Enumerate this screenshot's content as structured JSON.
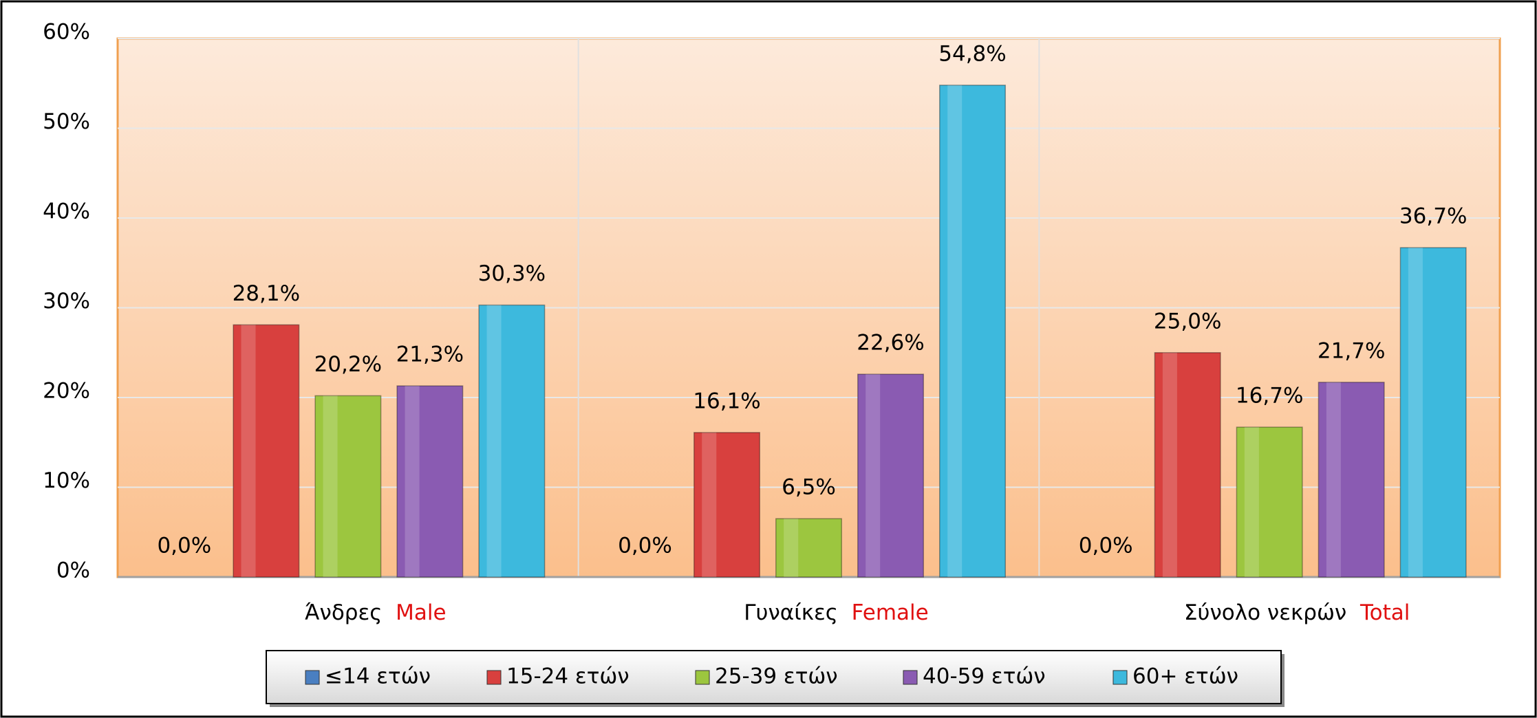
{
  "chart_data": {
    "type": "bar",
    "categories": [
      "Άνδρες",
      "Γυναίκες",
      "Σύνολο νεκρών"
    ],
    "category_translations": [
      "Male",
      "Female",
      "Total"
    ],
    "series": [
      {
        "name": "≤14 ετών",
        "color": "#4a7fc1",
        "values": [
          0,
          0,
          0
        ],
        "value_labels": [
          "0,0%",
          "0,0%",
          "0,0%"
        ]
      },
      {
        "name": "15-24 ετών",
        "color": "#d8403e",
        "values": [
          28.1,
          16.1,
          25.0
        ],
        "value_labels": [
          "28,1%",
          "16,1%",
          "25,0%"
        ]
      },
      {
        "name": "25-39 ετών",
        "color": "#9cc63f",
        "values": [
          20.2,
          6.5,
          16.7
        ],
        "value_labels": [
          "20,2%",
          "6,5%",
          "16,7%"
        ]
      },
      {
        "name": "40-59 ετών",
        "color": "#8a5bb2",
        "values": [
          21.3,
          22.6,
          21.7
        ],
        "value_labels": [
          "21,3%",
          "22,6%",
          "21,7%"
        ]
      },
      {
        "name": "60+ ετών",
        "color": "#3db9dd",
        "values": [
          30.3,
          54.8,
          36.7
        ],
        "value_labels": [
          "30,3%",
          "54,8%",
          "36,7%"
        ]
      }
    ],
    "ylim": [
      0,
      60
    ],
    "yticks": [
      {
        "value": 0,
        "label": "0%"
      },
      {
        "value": 10,
        "label": "10%"
      },
      {
        "value": 20,
        "label": "20%"
      },
      {
        "value": 30,
        "label": "30%"
      },
      {
        "value": 40,
        "label": "40%"
      },
      {
        "value": 50,
        "label": "50%"
      },
      {
        "value": 60,
        "label": "60%"
      }
    ],
    "grid": true,
    "legend": "bottom"
  }
}
